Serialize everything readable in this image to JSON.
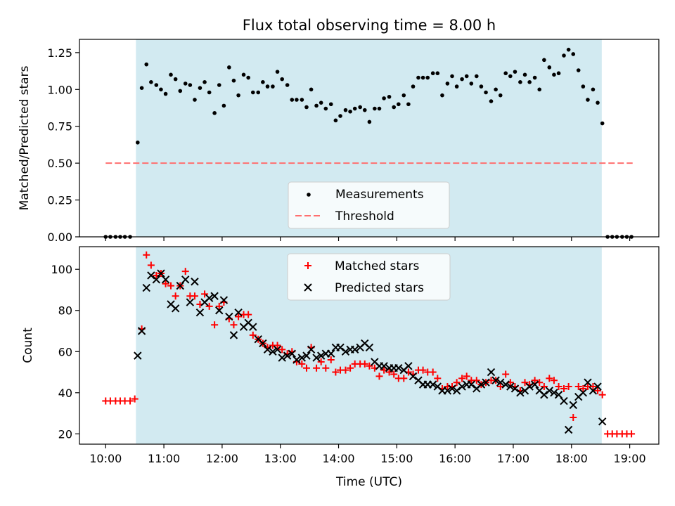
{
  "title": "Flux total observing time = 8.00 h",
  "colors": {
    "shade": "#add8e6",
    "measurement": "#000000",
    "threshold": "#ff6f6f",
    "matched": "#ff0000",
    "predicted": "#000000"
  },
  "chart_data": [
    {
      "type": "scatter",
      "ylabel": "Matched/Predicted stars",
      "xlim": [
        9.55,
        19.5
      ],
      "ylim": [
        0,
        1.34
      ],
      "yticks": [
        0,
        0.25,
        0.5,
        0.75,
        1.0,
        1.25
      ],
      "ytick_labels": [
        "0.00",
        "0.25",
        "0.50",
        "0.75",
        "1.00",
        "1.25"
      ],
      "shaded_interval": [
        10.52,
        18.52
      ],
      "threshold": {
        "value": 0.5,
        "x_range": [
          10.0,
          19.05
        ]
      },
      "legend": [
        "Measurements",
        "Threshold"
      ],
      "legend_position": "lower-center",
      "series": [
        {
          "name": "Measurements",
          "x": [
            10.0,
            10.08,
            10.17,
            10.25,
            10.33,
            10.42,
            10.55,
            10.62,
            10.7,
            10.78,
            10.87,
            10.95,
            11.03,
            11.12,
            11.2,
            11.28,
            11.37,
            11.45,
            11.53,
            11.62,
            11.7,
            11.78,
            11.87,
            11.95,
            12.03,
            12.12,
            12.2,
            12.28,
            12.37,
            12.45,
            12.53,
            12.62,
            12.7,
            12.78,
            12.87,
            12.95,
            13.03,
            13.12,
            13.2,
            13.28,
            13.37,
            13.45,
            13.53,
            13.62,
            13.7,
            13.78,
            13.87,
            13.95,
            14.03,
            14.12,
            14.2,
            14.28,
            14.37,
            14.45,
            14.53,
            14.62,
            14.7,
            14.78,
            14.87,
            14.95,
            15.03,
            15.12,
            15.2,
            15.28,
            15.37,
            15.45,
            15.53,
            15.62,
            15.7,
            15.78,
            15.87,
            15.95,
            16.03,
            16.12,
            16.2,
            16.28,
            16.37,
            16.45,
            16.53,
            16.62,
            16.7,
            16.78,
            16.87,
            16.95,
            17.03,
            17.12,
            17.2,
            17.28,
            17.37,
            17.45,
            17.53,
            17.62,
            17.7,
            17.78,
            17.87,
            17.95,
            18.03,
            18.12,
            18.2,
            18.28,
            18.37,
            18.45,
            18.53,
            18.62,
            18.7,
            18.78,
            18.87,
            18.95,
            19.03
          ],
          "y": [
            0,
            0,
            0,
            0,
            0,
            0,
            0.64,
            1.01,
            1.17,
            1.05,
            1.03,
            1.0,
            0.97,
            1.1,
            1.07,
            0.99,
            1.04,
            1.03,
            0.93,
            1.01,
            1.05,
            0.98,
            0.84,
            1.03,
            0.89,
            1.15,
            1.06,
            0.96,
            1.1,
            1.08,
            0.98,
            0.98,
            1.05,
            1.02,
            1.02,
            1.12,
            1.07,
            1.03,
            0.93,
            0.93,
            0.93,
            0.88,
            1.0,
            0.89,
            0.91,
            0.87,
            0.9,
            0.79,
            0.82,
            0.86,
            0.85,
            0.87,
            0.88,
            0.86,
            0.78,
            0.87,
            0.87,
            0.94,
            0.95,
            0.88,
            0.9,
            0.96,
            0.9,
            1.02,
            1.08,
            1.08,
            1.08,
            1.11,
            1.11,
            0.96,
            1.04,
            1.09,
            1.02,
            1.07,
            1.09,
            1.04,
            1.09,
            1.02,
            0.98,
            0.92,
            1.0,
            0.96,
            1.11,
            1.09,
            1.12,
            1.05,
            1.1,
            1.05,
            1.08,
            1.0,
            1.2,
            1.15,
            1.1,
            1.11,
            1.23,
            1.27,
            1.24,
            1.13,
            1.02,
            0.93,
            1.0,
            0.91,
            0.77,
            0,
            0,
            0,
            0,
            0,
            0
          ]
        }
      ]
    },
    {
      "type": "scatter",
      "xlabel": "Time (UTC)",
      "ylabel": "Count",
      "xlim": [
        9.55,
        19.5
      ],
      "ylim": [
        15,
        111
      ],
      "yticks": [
        20,
        40,
        60,
        80,
        100
      ],
      "ytick_labels": [
        "20",
        "40",
        "60",
        "80",
        "100"
      ],
      "xticks": [
        10,
        11,
        12,
        13,
        14,
        15,
        16,
        17,
        18,
        19
      ],
      "xtick_labels": [
        "10:00",
        "11:00",
        "12:00",
        "13:00",
        "14:00",
        "15:00",
        "16:00",
        "17:00",
        "18:00",
        "19:00"
      ],
      "shaded_interval": [
        10.52,
        18.52
      ],
      "legend": [
        "Matched stars",
        "Predicted stars"
      ],
      "legend_position": "upper-center",
      "series": [
        {
          "name": "Matched stars",
          "x": [
            10.0,
            10.08,
            10.17,
            10.25,
            10.33,
            10.42,
            10.5,
            10.62,
            10.7,
            10.78,
            10.87,
            10.95,
            11.03,
            11.12,
            11.2,
            11.28,
            11.37,
            11.45,
            11.53,
            11.62,
            11.7,
            11.78,
            11.87,
            11.95,
            12.03,
            12.12,
            12.2,
            12.28,
            12.37,
            12.45,
            12.53,
            12.62,
            12.7,
            12.78,
            12.87,
            12.95,
            13.03,
            13.12,
            13.2,
            13.28,
            13.37,
            13.45,
            13.53,
            13.62,
            13.7,
            13.78,
            13.87,
            13.95,
            14.03,
            14.12,
            14.2,
            14.28,
            14.37,
            14.45,
            14.53,
            14.62,
            14.7,
            14.78,
            14.87,
            14.95,
            15.03,
            15.12,
            15.2,
            15.28,
            15.37,
            15.45,
            15.53,
            15.62,
            15.7,
            15.78,
            15.87,
            15.95,
            16.03,
            16.12,
            16.2,
            16.28,
            16.37,
            16.45,
            16.53,
            16.62,
            16.7,
            16.78,
            16.87,
            16.95,
            17.03,
            17.12,
            17.2,
            17.28,
            17.37,
            17.45,
            17.53,
            17.62,
            17.7,
            17.78,
            17.87,
            17.95,
            18.03,
            18.12,
            18.2,
            18.28,
            18.37,
            18.45,
            18.53,
            18.62,
            18.7,
            18.78,
            18.87,
            18.95,
            19.03
          ],
          "y": [
            36,
            36,
            36,
            36,
            36,
            36,
            37,
            71,
            107,
            102,
            97,
            98,
            93,
            92,
            87,
            92,
            99,
            87,
            87,
            83,
            88,
            82,
            73,
            82,
            84,
            76,
            73,
            77,
            78,
            78,
            68,
            66,
            64,
            62,
            63,
            63,
            61,
            59,
            60,
            55,
            54,
            52,
            62,
            52,
            55,
            52,
            56,
            50,
            51,
            51,
            52,
            54,
            54,
            54,
            53,
            52,
            48,
            51,
            50,
            49,
            47,
            47,
            50,
            49,
            51,
            51,
            50,
            50,
            47,
            42,
            43,
            43,
            45,
            47,
            48,
            46,
            46,
            44,
            45,
            46,
            46,
            43,
            49,
            45,
            43,
            41,
            45,
            44,
            46,
            45,
            43,
            47,
            46,
            43,
            42,
            43,
            28,
            43,
            42,
            43,
            43,
            41,
            39,
            20,
            20,
            20,
            20,
            20,
            20
          ]
        },
        {
          "name": "Predicted stars",
          "x": [
            10.55,
            10.62,
            10.7,
            10.78,
            10.87,
            10.95,
            11.03,
            11.12,
            11.2,
            11.28,
            11.37,
            11.45,
            11.53,
            11.62,
            11.7,
            11.78,
            11.87,
            11.95,
            12.03,
            12.12,
            12.2,
            12.28,
            12.37,
            12.45,
            12.53,
            12.62,
            12.7,
            12.78,
            12.87,
            12.95,
            13.03,
            13.12,
            13.2,
            13.28,
            13.37,
            13.45,
            13.53,
            13.62,
            13.7,
            13.78,
            13.87,
            13.95,
            14.03,
            14.12,
            14.2,
            14.28,
            14.37,
            14.45,
            14.53,
            14.62,
            14.7,
            14.78,
            14.87,
            14.95,
            15.03,
            15.12,
            15.2,
            15.28,
            15.37,
            15.45,
            15.53,
            15.62,
            15.7,
            15.78,
            15.87,
            15.95,
            16.03,
            16.12,
            16.2,
            16.28,
            16.37,
            16.45,
            16.53,
            16.62,
            16.7,
            16.78,
            16.87,
            16.95,
            17.03,
            17.12,
            17.2,
            17.28,
            17.37,
            17.45,
            17.53,
            17.62,
            17.7,
            17.78,
            17.87,
            17.95,
            18.03,
            18.12,
            18.2,
            18.28,
            18.37,
            18.45,
            18.53
          ],
          "y": [
            58,
            70,
            91,
            97,
            95,
            98,
            95,
            83,
            81,
            92,
            95,
            84,
            94,
            79,
            84,
            86,
            87,
            80,
            85,
            77,
            68,
            79,
            72,
            74,
            72,
            66,
            64,
            61,
            60,
            61,
            57,
            58,
            59,
            56,
            57,
            58,
            61,
            57,
            58,
            59,
            59,
            62,
            62,
            60,
            61,
            61,
            62,
            64,
            62,
            55,
            53,
            53,
            52,
            52,
            52,
            51,
            53,
            48,
            46,
            44,
            44,
            44,
            43,
            41,
            41,
            42,
            41,
            43,
            44,
            44,
            42,
            44,
            45,
            50,
            46,
            45,
            44,
            43,
            42,
            40,
            41,
            43,
            44,
            41,
            39,
            41,
            40,
            39,
            36,
            22,
            34,
            38,
            40,
            45,
            41,
            43,
            26
          ]
        }
      ]
    }
  ]
}
